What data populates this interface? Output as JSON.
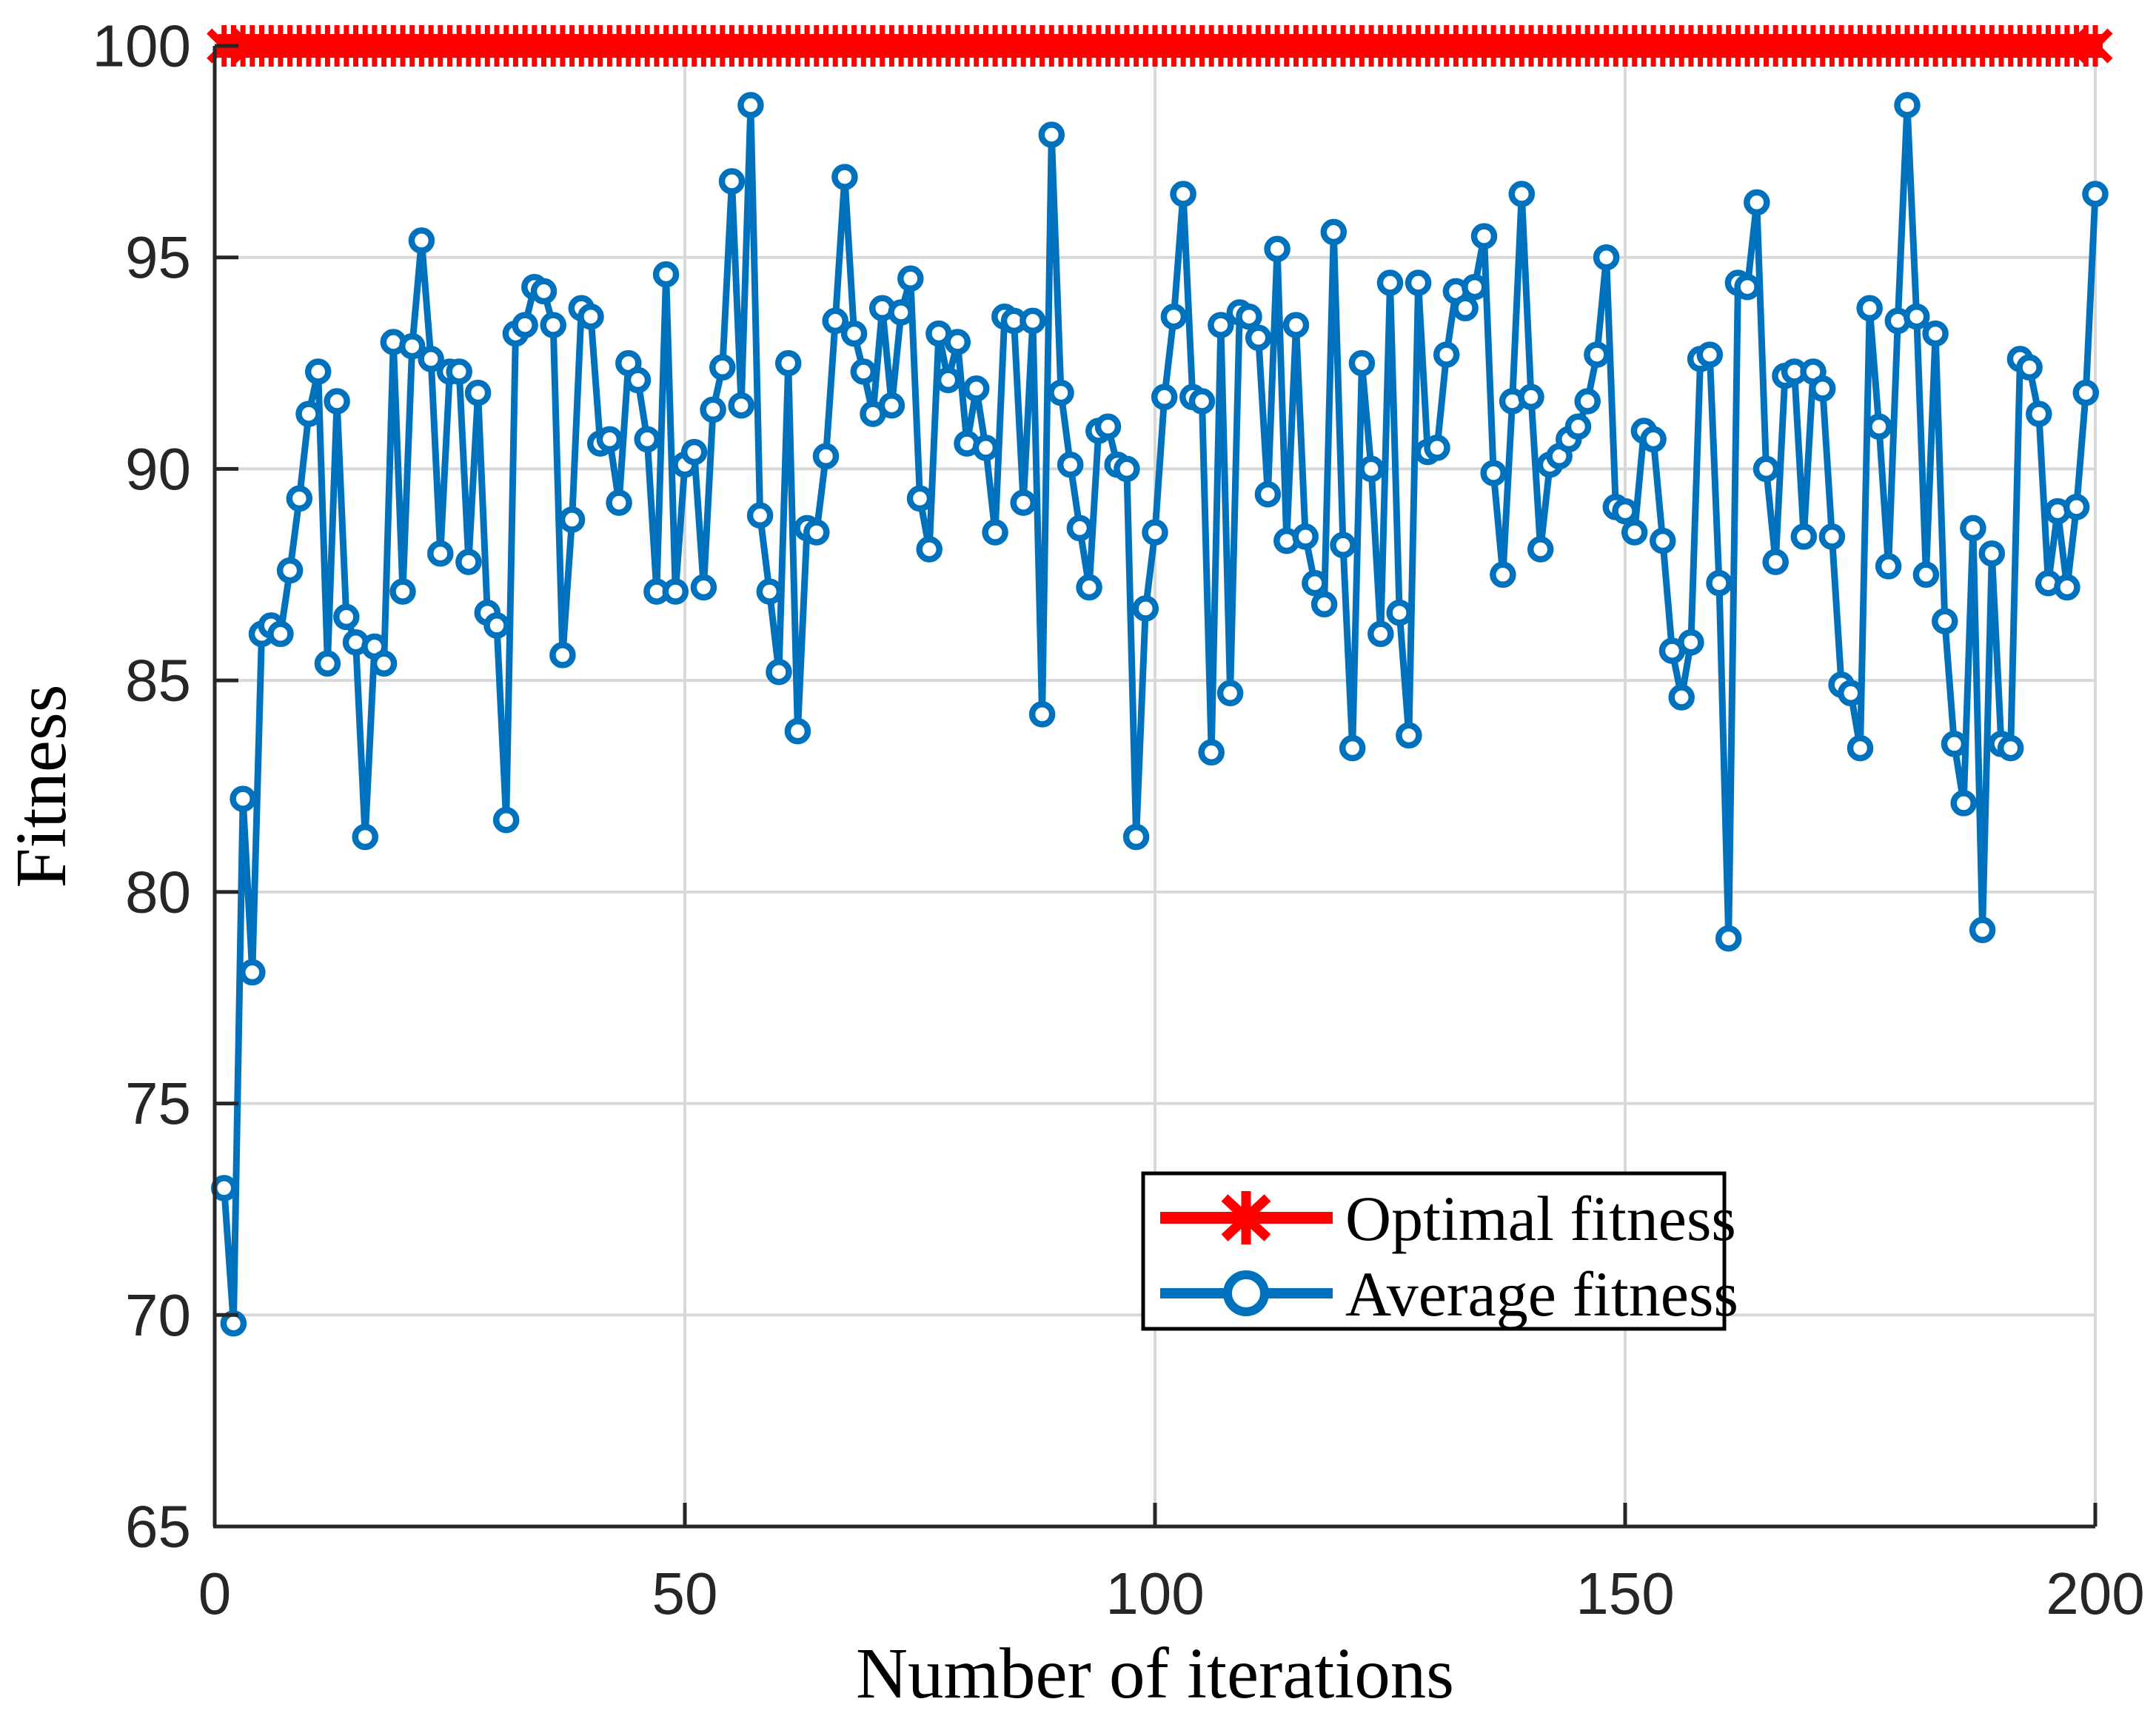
{
  "figure": {
    "background": "#FFFFFF"
  },
  "colors": {
    "optimal": "#FF0000",
    "average": "#0072BD",
    "marker_fill": "#FFFFFF",
    "grid": "#D8D8D8",
    "axis": "#262626",
    "tick_label": "#262626",
    "text": "#000000",
    "legend_border": "#000000",
    "legend_background": "#FFFFFF"
  },
  "chart_data": {
    "type": "line",
    "title": "",
    "xlabel": "Number of iterations",
    "ylabel": "Fitness",
    "xlim": [
      0,
      200
    ],
    "ylim": [
      65,
      100
    ],
    "xticks": [
      0,
      50,
      100,
      150,
      200
    ],
    "yticks": [
      65,
      70,
      75,
      80,
      85,
      90,
      95,
      100
    ],
    "grid": true,
    "legend_position": "lower-right-inside",
    "series": [
      {
        "name": "Optimal fitness",
        "color": "#FF0000",
        "marker": "asterisk",
        "x_start": 1,
        "x_step": 1,
        "n_points": 200,
        "constant_value": 100
      },
      {
        "name": "Average fitness",
        "color": "#0072BD",
        "marker": "open-circle",
        "x_start": 1,
        "x_step": 1,
        "values": [
          73.0,
          69.8,
          82.2,
          78.1,
          86.1,
          86.3,
          86.1,
          87.6,
          89.3,
          91.3,
          92.3,
          85.4,
          91.6,
          86.5,
          85.9,
          81.3,
          85.8,
          85.4,
          93.0,
          87.1,
          92.9,
          95.4,
          92.6,
          88.0,
          92.3,
          92.3,
          87.8,
          91.8,
          86.6,
          86.3,
          81.7,
          93.2,
          93.4,
          94.3,
          94.2,
          93.4,
          85.6,
          88.8,
          93.8,
          93.6,
          90.6,
          90.7,
          89.2,
          92.5,
          92.1,
          90.7,
          87.1,
          94.6,
          87.1,
          90.1,
          90.4,
          87.2,
          91.4,
          92.4,
          96.8,
          91.5,
          98.6,
          88.9,
          87.1,
          85.2,
          92.5,
          83.8,
          88.6,
          88.5,
          90.3,
          93.5,
          96.9,
          93.2,
          92.3,
          91.3,
          93.8,
          91.5,
          93.7,
          94.5,
          89.3,
          88.1,
          93.2,
          92.1,
          93.0,
          90.6,
          91.9,
          90.5,
          88.5,
          93.6,
          93.5,
          89.2,
          93.5,
          84.2,
          97.9,
          91.8,
          90.1,
          88.6,
          87.2,
          90.9,
          91.0,
          90.1,
          90.0,
          81.3,
          86.7,
          88.5,
          91.7,
          93.6,
          96.5,
          91.7,
          91.6,
          83.3,
          93.4,
          84.7,
          93.7,
          93.6,
          93.1,
          89.4,
          95.2,
          88.3,
          93.4,
          88.4,
          87.3,
          86.8,
          95.6,
          88.2,
          83.4,
          92.5,
          90.0,
          86.1,
          94.4,
          86.6,
          83.7,
          94.4,
          90.4,
          90.5,
          92.7,
          94.2,
          93.8,
          94.3,
          95.5,
          89.9,
          87.5,
          91.6,
          96.5,
          91.7,
          88.1,
          90.1,
          90.3,
          90.7,
          91.0,
          91.6,
          92.7,
          95.0,
          89.1,
          89.0,
          88.5,
          90.9,
          90.7,
          88.3,
          85.7,
          84.6,
          85.9,
          92.6,
          92.7,
          87.3,
          78.9,
          94.4,
          94.3,
          96.3,
          90.0,
          87.8,
          92.2,
          92.3,
          88.4,
          92.3,
          91.9,
          88.4,
          84.9,
          84.7,
          83.4,
          93.8,
          91.0,
          87.7,
          93.5,
          98.6,
          93.6,
          87.5,
          93.2,
          86.4,
          83.5,
          82.1,
          88.6,
          79.1,
          88.0,
          83.5,
          83.4,
          92.6,
          92.4,
          91.3,
          87.3,
          89.0,
          87.2,
          89.1,
          91.8,
          96.5
        ]
      }
    ]
  },
  "legend": {
    "entries": [
      {
        "label": "Optimal fitness",
        "color": "#FF0000",
        "marker": "asterisk"
      },
      {
        "label": "Average fitness",
        "color": "#0072BD",
        "marker": "open-circle"
      }
    ]
  }
}
